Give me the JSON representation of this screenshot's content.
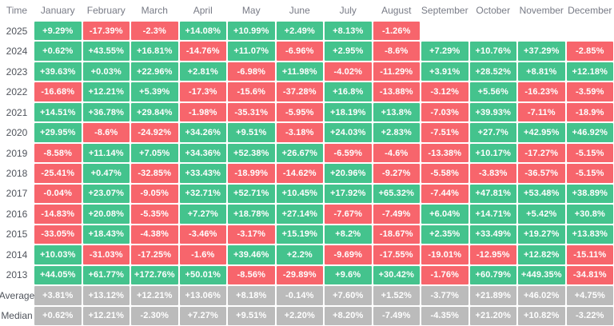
{
  "palette": {
    "positive": "#44c38d",
    "negative": "#f7656c",
    "neutral_stat": "#bbbbbb",
    "cell_text": "#ffffff",
    "header_text": "#787b86",
    "label_text": "#50545c",
    "background": "#ffffff"
  },
  "chart_data": {
    "type": "heatmap",
    "corner_label": "Time",
    "columns": [
      "January",
      "February",
      "March",
      "April",
      "May",
      "June",
      "July",
      "August",
      "September",
      "October",
      "November",
      "December"
    ],
    "rows": [
      {
        "label": "2025",
        "kind": "year",
        "values": [
          "+9.29%",
          "-17.39%",
          "-2.3%",
          "+14.08%",
          "+10.99%",
          "+2.49%",
          "+8.13%",
          "-1.26%",
          "",
          "",
          "",
          ""
        ]
      },
      {
        "label": "2024",
        "kind": "year",
        "values": [
          "+0.62%",
          "+43.55%",
          "+16.81%",
          "-14.76%",
          "+11.07%",
          "-6.96%",
          "+2.95%",
          "-8.6%",
          "+7.29%",
          "+10.76%",
          "+37.29%",
          "-2.85%"
        ]
      },
      {
        "label": "2023",
        "kind": "year",
        "values": [
          "+39.63%",
          "+0.03%",
          "+22.96%",
          "+2.81%",
          "-6.98%",
          "+11.98%",
          "-4.02%",
          "-11.29%",
          "+3.91%",
          "+28.52%",
          "+8.81%",
          "+12.18%"
        ]
      },
      {
        "label": "2022",
        "kind": "year",
        "values": [
          "-16.68%",
          "+12.21%",
          "+5.39%",
          "-17.3%",
          "-15.6%",
          "-37.28%",
          "+16.8%",
          "-13.88%",
          "-3.12%",
          "+5.56%",
          "-16.23%",
          "-3.59%"
        ]
      },
      {
        "label": "2021",
        "kind": "year",
        "values": [
          "+14.51%",
          "+36.78%",
          "+29.84%",
          "-1.98%",
          "-35.31%",
          "-5.95%",
          "+18.19%",
          "+13.8%",
          "-7.03%",
          "+39.93%",
          "-7.11%",
          "-18.9%"
        ]
      },
      {
        "label": "2020",
        "kind": "year",
        "values": [
          "+29.95%",
          "-8.6%",
          "-24.92%",
          "+34.26%",
          "+9.51%",
          "-3.18%",
          "+24.03%",
          "+2.83%",
          "-7.51%",
          "+27.7%",
          "+42.95%",
          "+46.92%"
        ]
      },
      {
        "label": "2019",
        "kind": "year",
        "values": [
          "-8.58%",
          "+11.14%",
          "+7.05%",
          "+34.36%",
          "+52.38%",
          "+26.67%",
          "-6.59%",
          "-4.6%",
          "-13.38%",
          "+10.17%",
          "-17.27%",
          "-5.15%"
        ]
      },
      {
        "label": "2018",
        "kind": "year",
        "values": [
          "-25.41%",
          "+0.47%",
          "-32.85%",
          "+33.43%",
          "-18.99%",
          "-14.62%",
          "+20.96%",
          "-9.27%",
          "-5.58%",
          "-3.83%",
          "-36.57%",
          "-5.15%"
        ]
      },
      {
        "label": "2017",
        "kind": "year",
        "values": [
          "-0.04%",
          "+23.07%",
          "-9.05%",
          "+32.71%",
          "+52.71%",
          "+10.45%",
          "+17.92%",
          "+65.32%",
          "-7.44%",
          "+47.81%",
          "+53.48%",
          "+38.89%"
        ]
      },
      {
        "label": "2016",
        "kind": "year",
        "values": [
          "-14.83%",
          "+20.08%",
          "-5.35%",
          "+7.27%",
          "+18.78%",
          "+27.14%",
          "-7.67%",
          "-7.49%",
          "+6.04%",
          "+14.71%",
          "+5.42%",
          "+30.8%"
        ]
      },
      {
        "label": "2015",
        "kind": "year",
        "values": [
          "-33.05%",
          "+18.43%",
          "-4.38%",
          "-3.46%",
          "-3.17%",
          "+15.19%",
          "+8.2%",
          "-18.67%",
          "+2.35%",
          "+33.49%",
          "+19.27%",
          "+13.83%"
        ]
      },
      {
        "label": "2014",
        "kind": "year",
        "values": [
          "+10.03%",
          "-31.03%",
          "-17.25%",
          "-1.6%",
          "+39.46%",
          "+2.2%",
          "-9.69%",
          "-17.55%",
          "-19.01%",
          "-12.95%",
          "+12.82%",
          "-15.11%"
        ]
      },
      {
        "label": "2013",
        "kind": "year",
        "values": [
          "+44.05%",
          "+61.77%",
          "+172.76%",
          "+50.01%",
          "-8.56%",
          "-29.89%",
          "+9.6%",
          "+30.42%",
          "-1.76%",
          "+60.79%",
          "+449.35%",
          "-34.81%"
        ]
      },
      {
        "label": "Average",
        "kind": "stat",
        "values": [
          "+3.81%",
          "+13.12%",
          "+12.21%",
          "+13.06%",
          "+8.18%",
          "-0.14%",
          "+7.60%",
          "+1.52%",
          "-3.77%",
          "+21.89%",
          "+46.02%",
          "+4.75%"
        ]
      },
      {
        "label": "Median",
        "kind": "stat",
        "values": [
          "+0.62%",
          "+12.21%",
          "-2.30%",
          "+7.27%",
          "+9.51%",
          "+2.20%",
          "+8.20%",
          "-7.49%",
          "-4.35%",
          "+21.20%",
          "+10.82%",
          "-3.22%"
        ]
      }
    ],
    "legend": "green = positive monthly return, red = negative monthly return, gray = Average/Median summary rows"
  }
}
